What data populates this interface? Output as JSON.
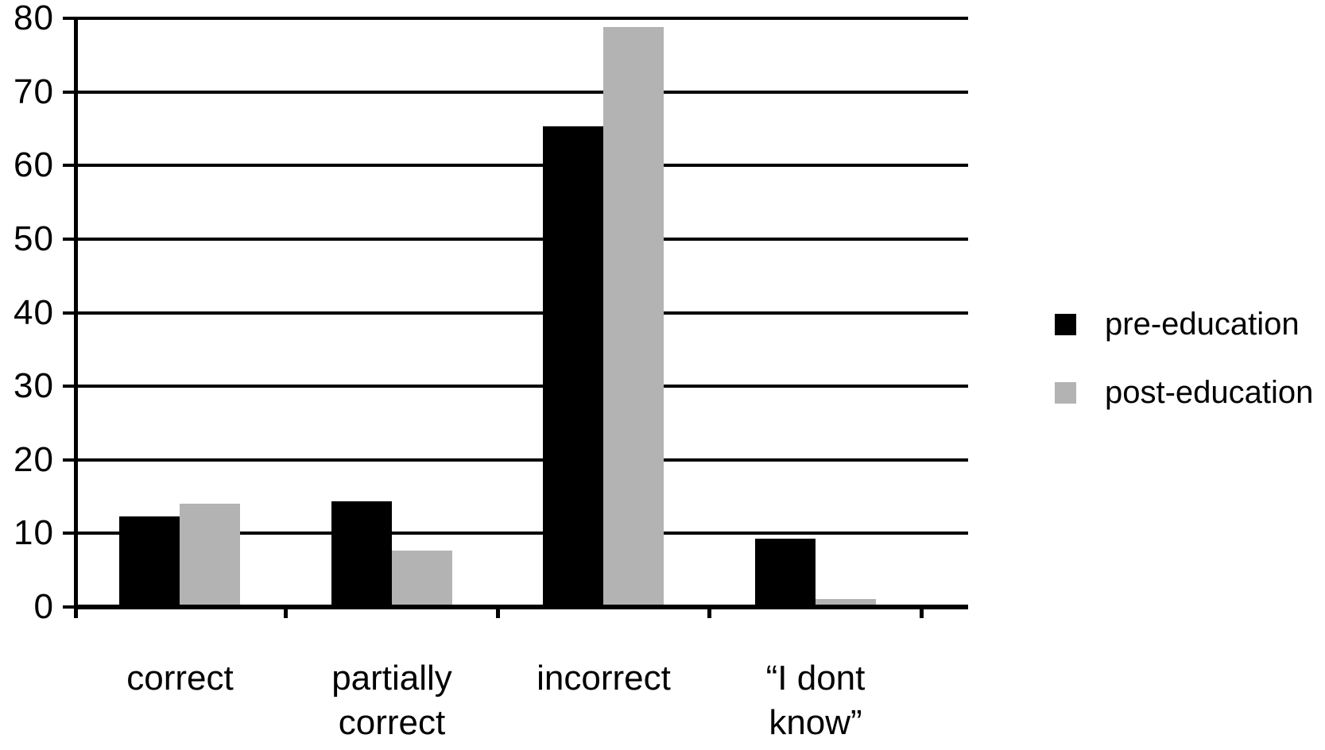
{
  "chart_data": {
    "type": "bar",
    "categories": [
      "correct",
      "partially\ncorrect",
      "incorrect",
      "“I dont\nknow”"
    ],
    "category_slugs": [
      "correct",
      "partially-correct",
      "incorrect",
      "i-dont-know"
    ],
    "series": [
      {
        "name": "pre-education",
        "color": "#000000",
        "values": [
          12,
          14,
          65,
          9
        ]
      },
      {
        "name": "post-education",
        "color": "#b3b3b3",
        "values": [
          13.7,
          7.3,
          78.5,
          0.8
        ]
      }
    ],
    "ylim": [
      0,
      80
    ],
    "y_ticks": [
      0,
      10,
      20,
      30,
      40,
      50,
      60,
      70,
      80
    ],
    "grid": true,
    "legend_position": "right",
    "axis_color": "#000000",
    "background_color": "#ffffff"
  }
}
